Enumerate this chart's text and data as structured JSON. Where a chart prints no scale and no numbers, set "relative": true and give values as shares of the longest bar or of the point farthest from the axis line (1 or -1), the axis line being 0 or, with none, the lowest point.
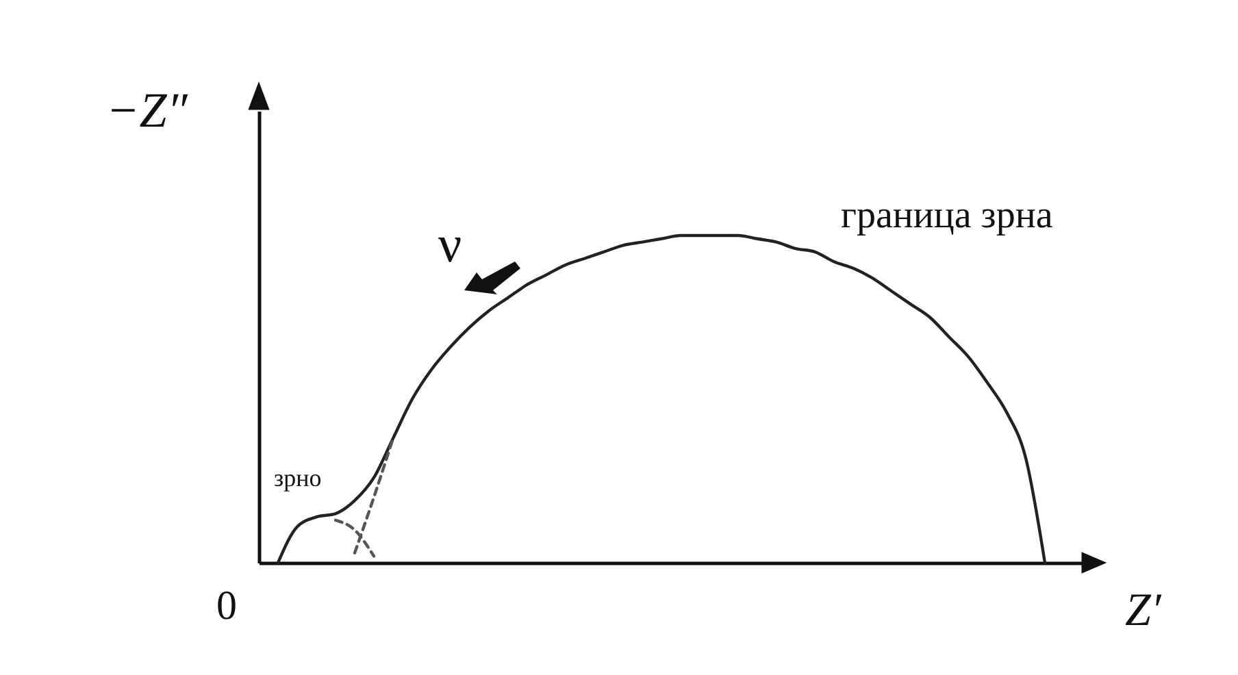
{
  "chart_data": {
    "type": "line",
    "relative": true,
    "xlabel": "Z′",
    "ylabel": "−Z″",
    "grid": false,
    "marker": "none",
    "categories": [
      null,
      null,
      null,
      null,
      null,
      null,
      null,
      null,
      null,
      null,
      null,
      null,
      null,
      null,
      null,
      null,
      null,
      null,
      null,
      null,
      null,
      null,
      null,
      null,
      null,
      null,
      null,
      null,
      null,
      null,
      null,
      null,
      null,
      null,
      null,
      null,
      null,
      null,
      null,
      null,
      null,
      null,
      null,
      null
    ],
    "series": [
      {
        "color": "#222222",
        "line_style": "solid",
        "values": [
          null,
          0,
          0.11,
          0.14,
          0.15,
          0.19,
          0.26,
          0.38,
          0.5,
          0.59,
          0.66,
          0.72,
          0.77,
          0.81,
          0.85,
          0.88,
          0.91,
          0.93,
          0.95,
          0.97,
          0.98,
          0.99,
          1.0,
          1.0,
          1.0,
          1.0,
          0.99,
          0.98,
          0.96,
          0.95,
          0.92,
          0.9,
          0.87,
          0.83,
          0.79,
          0.75,
          0.69,
          0.63,
          0.55,
          0.46,
          0.32,
          0,
          null,
          null
        ]
      },
      {
        "color": "#555555",
        "line_style": "dashed",
        "values": [
          null,
          null,
          null,
          null,
          0.13,
          0.1,
          0.02,
          null,
          null,
          null,
          null,
          null,
          null,
          null,
          null,
          null,
          null,
          null,
          null,
          null,
          null,
          null,
          null,
          null,
          null,
          null,
          null,
          null,
          null,
          null,
          null,
          null,
          null,
          null,
          null,
          null,
          null,
          null,
          null,
          null,
          null,
          null,
          null,
          null
        ]
      },
      {
        "color": "#555555",
        "line_style": "dashed",
        "values": [
          null,
          null,
          null,
          null,
          null,
          0.03,
          0.2,
          0.38,
          null,
          null,
          null,
          null,
          null,
          null,
          null,
          null,
          null,
          null,
          null,
          null,
          null,
          null,
          null,
          null,
          null,
          null,
          null,
          null,
          null,
          null,
          null,
          null,
          null,
          null,
          null,
          null,
          null,
          null,
          null,
          null,
          null,
          null,
          null,
          null
        ]
      }
    ],
    "annotations": [
      "0",
      "зрно",
      "ν",
      "граница зрна"
    ]
  }
}
